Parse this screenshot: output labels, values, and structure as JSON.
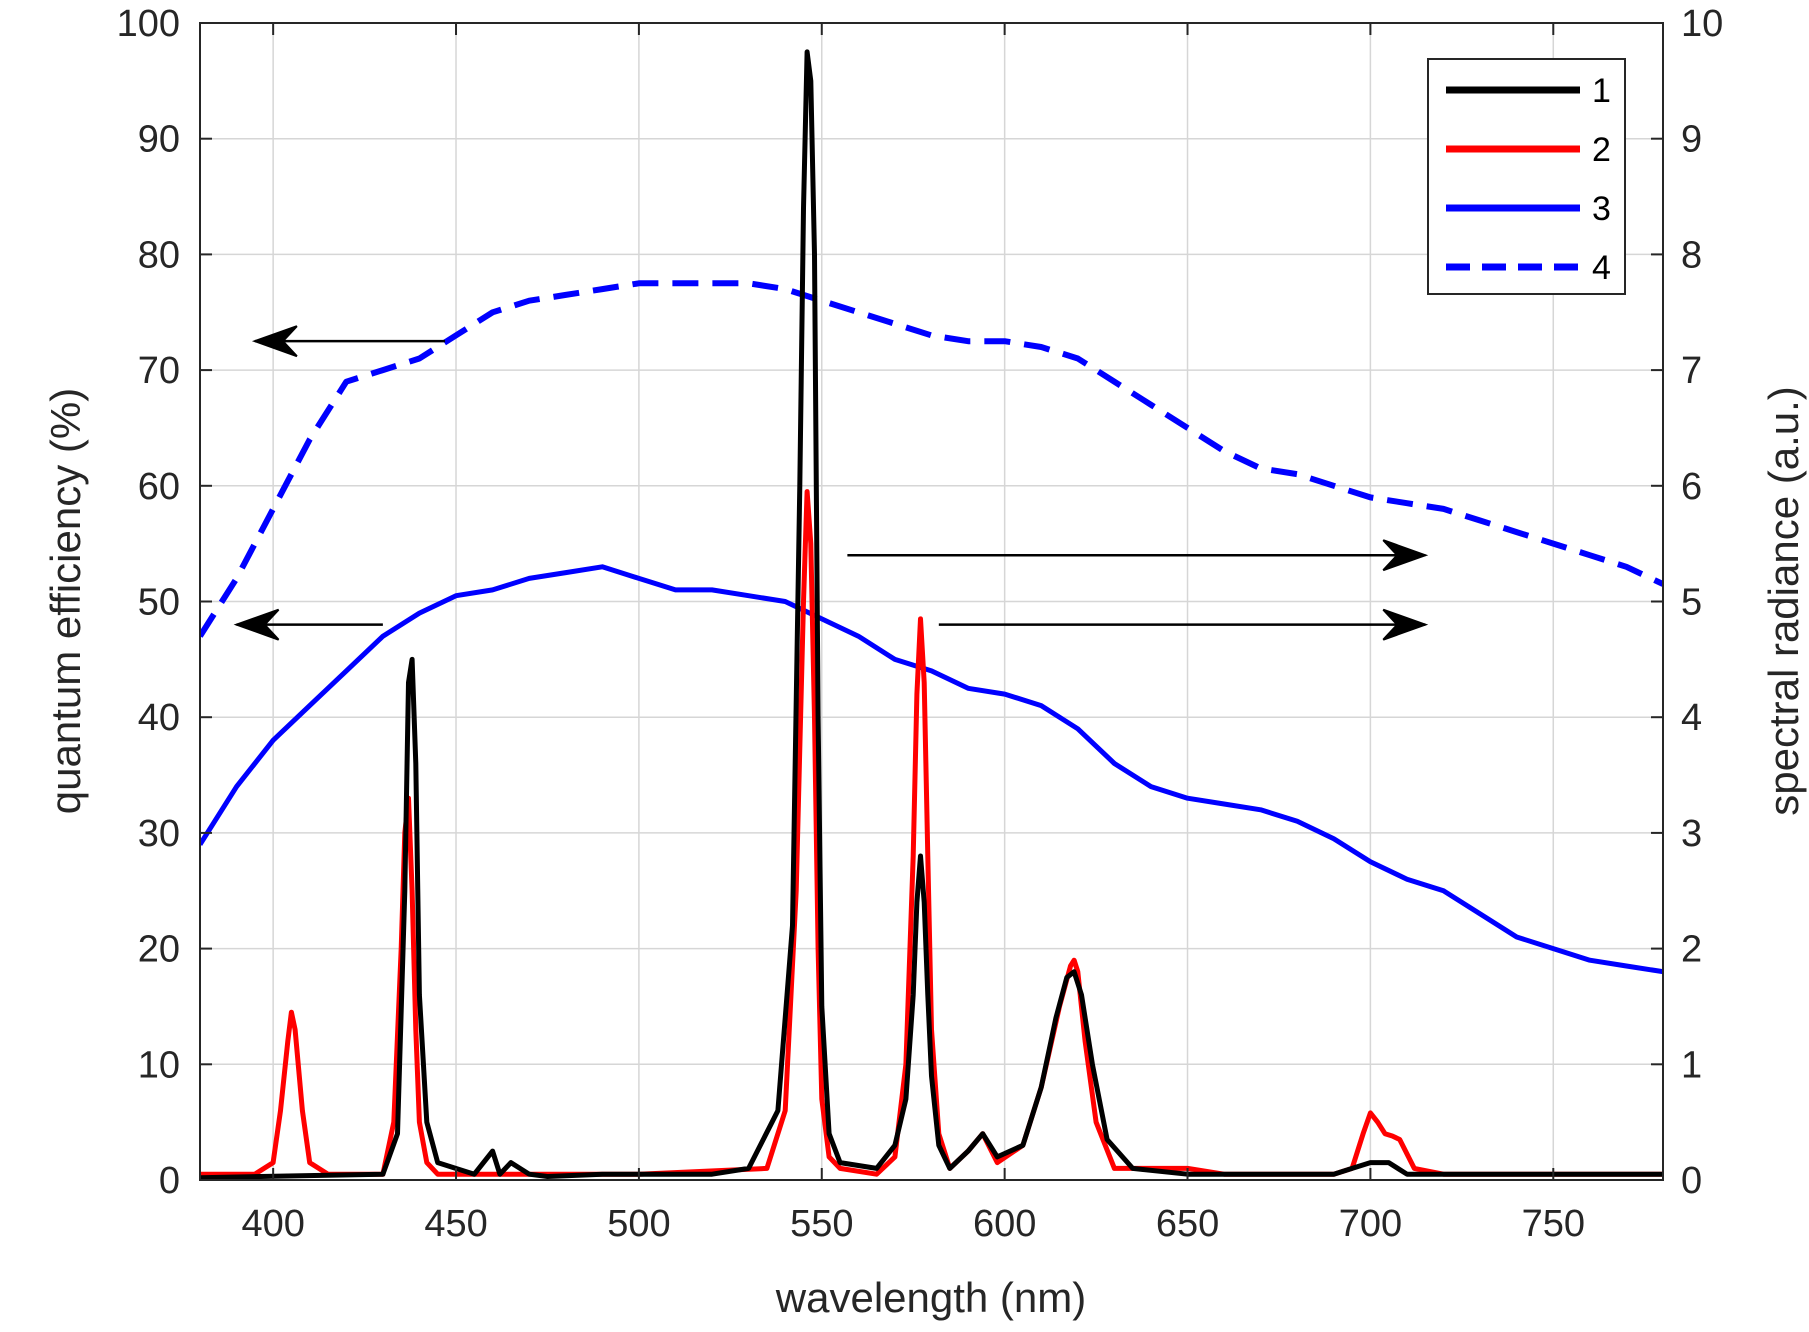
{
  "chart_data": {
    "type": "line",
    "title": "",
    "xlabel": "wavelength (nm)",
    "ylabel_left": "quantum efficiency (%)",
    "ylabel_right": "spectral radiance (a.u.)",
    "xlim": [
      380,
      780
    ],
    "ylim_left": [
      0,
      100
    ],
    "ylim_right": [
      0,
      10
    ],
    "xticks": [
      400,
      450,
      500,
      550,
      600,
      650,
      700,
      750
    ],
    "yticks_left": [
      0,
      10,
      20,
      30,
      40,
      50,
      60,
      70,
      80,
      90,
      100
    ],
    "yticks_right": [
      0,
      1,
      2,
      3,
      4,
      5,
      6,
      7,
      8,
      9,
      10
    ],
    "grid": true,
    "legend_position": "top-right",
    "series": [
      {
        "name": "1",
        "axis": "right",
        "color": "#000000",
        "style": "solid",
        "x": [
          380,
          430,
          434,
          436,
          437,
          438,
          439,
          440,
          442,
          445,
          455,
          460,
          462,
          465,
          470,
          475,
          490,
          500,
          520,
          530,
          538,
          542,
          544,
          545,
          546,
          547,
          548,
          549,
          550,
          552,
          555,
          565,
          570,
          573,
          575,
          576,
          577,
          578,
          579,
          580,
          582,
          585,
          590,
          594,
          598,
          605,
          610,
          614,
          617,
          619,
          621,
          624,
          628,
          635,
          650,
          660,
          690,
          695,
          700,
          705,
          710,
          740,
          780
        ],
        "y": [
          0.02,
          0.05,
          0.4,
          2.5,
          4.3,
          4.5,
          3.6,
          1.6,
          0.5,
          0.15,
          0.05,
          0.25,
          0.05,
          0.15,
          0.05,
          0.03,
          0.05,
          0.05,
          0.05,
          0.1,
          0.6,
          2.2,
          6.0,
          8.4,
          9.75,
          9.5,
          8.0,
          4.0,
          1.5,
          0.4,
          0.15,
          0.1,
          0.3,
          0.7,
          1.6,
          2.4,
          2.8,
          2.4,
          1.6,
          0.9,
          0.3,
          0.1,
          0.25,
          0.4,
          0.2,
          0.3,
          0.8,
          1.4,
          1.75,
          1.8,
          1.6,
          1.0,
          0.35,
          0.1,
          0.05,
          0.05,
          0.05,
          0.1,
          0.15,
          0.15,
          0.05,
          0.05,
          0.05
        ]
      },
      {
        "name": "2",
        "axis": "right",
        "color": "#ff0000",
        "style": "solid",
        "x": [
          380,
          395,
          400,
          402,
          404,
          405,
          406,
          408,
          410,
          415,
          430,
          433,
          435,
          436,
          437,
          438,
          439,
          440,
          442,
          445,
          455,
          470,
          500,
          535,
          540,
          543,
          545,
          546,
          547,
          548,
          549,
          550,
          552,
          555,
          565,
          570,
          573,
          575,
          576,
          577,
          578,
          579,
          580,
          582,
          585,
          590,
          594,
          598,
          605,
          610,
          615,
          618,
          619,
          620,
          622,
          625,
          630,
          650,
          660,
          690,
          695,
          698,
          700,
          702,
          704,
          706,
          708,
          712,
          720,
          780
        ],
        "y": [
          0.05,
          0.05,
          0.15,
          0.6,
          1.2,
          1.45,
          1.3,
          0.6,
          0.15,
          0.05,
          0.05,
          0.5,
          2.0,
          3.0,
          3.3,
          2.5,
          1.3,
          0.5,
          0.15,
          0.05,
          0.05,
          0.05,
          0.05,
          0.1,
          0.6,
          2.5,
          5.0,
          5.95,
          5.5,
          4.0,
          2.0,
          0.7,
          0.2,
          0.1,
          0.05,
          0.2,
          1.0,
          2.8,
          4.2,
          4.85,
          4.3,
          2.8,
          1.3,
          0.4,
          0.1,
          0.25,
          0.4,
          0.15,
          0.3,
          0.8,
          1.5,
          1.85,
          1.9,
          1.8,
          1.2,
          0.5,
          0.1,
          0.1,
          0.05,
          0.05,
          0.1,
          0.4,
          0.58,
          0.5,
          0.4,
          0.38,
          0.35,
          0.1,
          0.05,
          0.05
        ]
      },
      {
        "name": "3",
        "axis": "left",
        "color": "#0000ff",
        "style": "solid",
        "x": [
          380,
          390,
          400,
          410,
          420,
          430,
          440,
          450,
          460,
          470,
          480,
          490,
          500,
          510,
          520,
          530,
          540,
          550,
          560,
          570,
          580,
          590,
          600,
          610,
          620,
          630,
          640,
          650,
          660,
          670,
          680,
          690,
          700,
          710,
          720,
          730,
          740,
          750,
          760,
          770,
          780
        ],
        "y": [
          29,
          34,
          38,
          41,
          44,
          47,
          49,
          50.5,
          51,
          52,
          52.5,
          53,
          52,
          51,
          51,
          50.5,
          50,
          48.5,
          47,
          45,
          44,
          42.5,
          42,
          41,
          39,
          36,
          34,
          33,
          32.5,
          32,
          31,
          29.5,
          27.5,
          26,
          25,
          23,
          21,
          20,
          19,
          18.5,
          18
        ]
      },
      {
        "name": "4",
        "axis": "left",
        "color": "#0000ff",
        "style": "dashed",
        "x": [
          380,
          390,
          400,
          410,
          420,
          430,
          440,
          450,
          460,
          470,
          480,
          490,
          500,
          510,
          520,
          530,
          540,
          550,
          560,
          570,
          580,
          590,
          600,
          610,
          620,
          630,
          640,
          650,
          660,
          670,
          680,
          690,
          700,
          710,
          720,
          730,
          740,
          750,
          760,
          770,
          780
        ],
        "y": [
          47,
          52,
          58,
          64,
          69,
          70,
          71,
          73,
          75,
          76,
          76.5,
          77,
          77.5,
          77.5,
          77.5,
          77.5,
          77,
          76,
          75,
          74,
          73,
          72.5,
          72.5,
          72,
          71,
          69,
          67,
          65,
          63,
          61.5,
          61,
          60,
          59,
          58.5,
          58,
          57,
          56,
          55,
          54,
          53,
          51.5
        ]
      }
    ],
    "annotations": [
      {
        "type": "arrow",
        "direction": "left",
        "from": [
          447,
          72.5
        ],
        "to": [
          395,
          72.5
        ],
        "axis": "left"
      },
      {
        "type": "arrow",
        "direction": "left",
        "from": [
          430,
          48
        ],
        "to": [
          390,
          48
        ],
        "axis": "left"
      },
      {
        "type": "arrow",
        "direction": "right",
        "from": [
          557,
          54
        ],
        "to": [
          715,
          54
        ],
        "axis": "left"
      },
      {
        "type": "arrow",
        "direction": "right",
        "from": [
          582,
          48
        ],
        "to": [
          715,
          48
        ],
        "axis": "left"
      }
    ]
  }
}
